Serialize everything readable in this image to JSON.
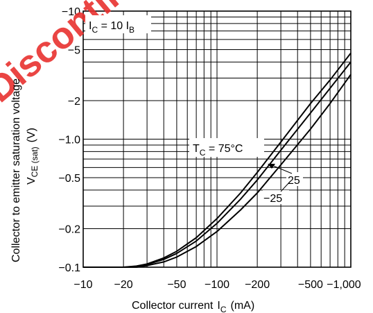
{
  "chart_data": {
    "type": "line",
    "title": "",
    "watermark": "Discontinued",
    "xlabel": "Collector current",
    "xlabel_symbol": "I",
    "xlabel_sub": "C",
    "xlabel_unit": "(mA)",
    "ylabel_main": "Collector to emitter saturation voltage",
    "ylabel_symbol": "V",
    "ylabel_sub": "CE (sat)",
    "ylabel_unit": "(V)",
    "x_scale": "log",
    "y_scale": "log",
    "xlim": [
      -10,
      -1000
    ],
    "ylim": [
      -0.1,
      -10
    ],
    "x_ticks": [
      {
        "value": -10,
        "label": "−10"
      },
      {
        "value": -20,
        "label": "−20"
      },
      {
        "value": -50,
        "label": "−50"
      },
      {
        "value": -100,
        "label": "−100"
      },
      {
        "value": -200,
        "label": "−200"
      },
      {
        "value": -500,
        "label": "−500"
      },
      {
        "value": -1000,
        "label": "−1,000"
      }
    ],
    "y_ticks": [
      {
        "value": -10,
        "label": "−10"
      },
      {
        "value": -5,
        "label": "−5"
      },
      {
        "value": -2,
        "label": "−2"
      },
      {
        "value": -1.0,
        "label": "−1.0"
      },
      {
        "value": -0.5,
        "label": "−0.5"
      },
      {
        "value": -0.2,
        "label": "−0.2"
      },
      {
        "value": -0.1,
        "label": "−0.1"
      }
    ],
    "grid": true,
    "condition_label_symbol": "I",
    "condition_label_sub": "C",
    "condition_label_rest": " = 10 I",
    "condition_label_sub2": "B",
    "series": [
      {
        "name": "75°C",
        "x": [
          -10,
          -20,
          -25,
          -30,
          -40,
          -50,
          -70,
          -100,
          -150,
          -200,
          -300,
          -500,
          -700,
          -1000
        ],
        "y": [
          -0.1,
          -0.1,
          -0.102,
          -0.106,
          -0.118,
          -0.133,
          -0.17,
          -0.24,
          -0.38,
          -0.55,
          -0.95,
          -1.9,
          -2.9,
          -4.7
        ]
      },
      {
        "name": "25",
        "x": [
          -10,
          -20,
          -25,
          -30,
          -40,
          -50,
          -70,
          -100,
          -150,
          -200,
          -300,
          -500,
          -700,
          -1000
        ],
        "y": [
          -0.1,
          -0.1,
          -0.101,
          -0.105,
          -0.115,
          -0.128,
          -0.16,
          -0.22,
          -0.34,
          -0.48,
          -0.82,
          -1.6,
          -2.5,
          -4.0
        ]
      },
      {
        "name": "−25",
        "x": [
          -10,
          -20,
          -25,
          -30,
          -40,
          -50,
          -70,
          -100,
          -150,
          -200,
          -300,
          -500,
          -700,
          -1000
        ],
        "y": [
          -0.1,
          -0.1,
          -0.1,
          -0.103,
          -0.11,
          -0.12,
          -0.145,
          -0.19,
          -0.28,
          -0.38,
          -0.63,
          -1.2,
          -1.9,
          -3.2
        ]
      }
    ],
    "annotations": {
      "tc_label_symbol": "T",
      "tc_label_sub": "C",
      "tc_label_rest": " = 75°C",
      "label_25": "25",
      "label_m25": "−25"
    }
  }
}
